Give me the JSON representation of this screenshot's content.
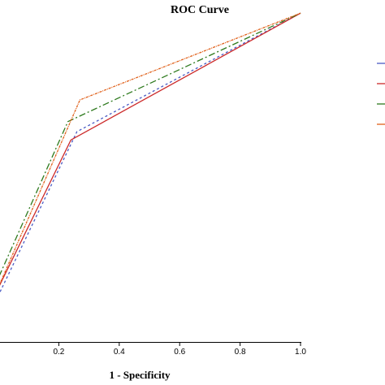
{
  "chart_data": {
    "type": "line",
    "title": "ROC Curve",
    "xlabel": "1 - Specificity",
    "ylabel": "",
    "xlim": [
      0.0,
      1.0
    ],
    "ylim": [
      0.0,
      1.0
    ],
    "x_ticks": [
      "0.2",
      "0.4",
      "0.6",
      "0.8",
      "1.0"
    ],
    "x_tick_values": [
      0.2,
      0.4,
      0.6,
      0.8,
      1.0
    ],
    "grid": false,
    "legend": "right",
    "series": [
      {
        "color": "#4a5bc4",
        "dash": "3,3",
        "x": [
          -0.05,
          0.26,
          1.0
        ],
        "y": [
          0.045,
          0.63,
          0.985
        ]
      },
      {
        "color": "#cc2a2a",
        "dash": "",
        "x": [
          -0.05,
          0.24,
          1.0
        ],
        "y": [
          0.07,
          0.605,
          0.985
        ]
      },
      {
        "color": "#2e7a1e",
        "dash": "8,3,2,3",
        "x": [
          -0.05,
          0.23,
          1.0
        ],
        "y": [
          0.09,
          0.66,
          0.985
        ]
      },
      {
        "color": "#e0601a",
        "dash": "3,1,1,1",
        "x": [
          -0.05,
          0.27,
          1.0
        ],
        "y": [
          0.06,
          0.725,
          0.985
        ]
      }
    ]
  }
}
